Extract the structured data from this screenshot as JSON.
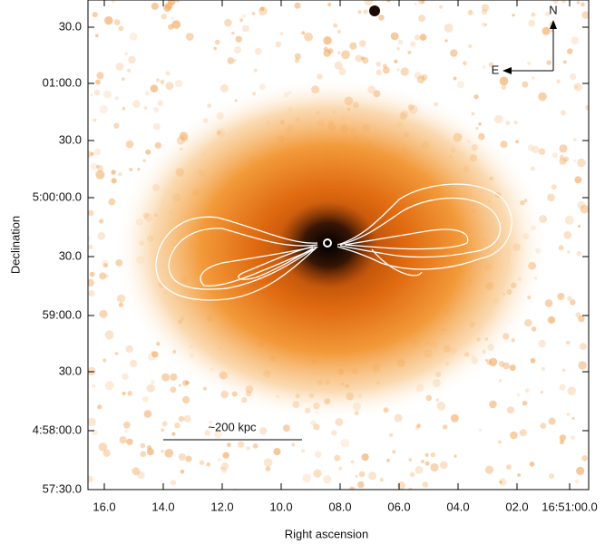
{
  "figure": {
    "x_axis": {
      "label": "Right ascension",
      "ticks": [
        "16.0",
        "14.0",
        "12.0",
        "10.0",
        "08.0",
        "06.0",
        "04.0",
        "02.0",
        "16:51:00.0"
      ]
    },
    "y_axis": {
      "label": "Declination",
      "ticks": [
        "30.0",
        "01:00.0",
        "30.0",
        "5:00:00.0",
        "30.0",
        "59:00.0",
        "30.0",
        "4:58:00.0",
        "57:30.0"
      ]
    },
    "annotations": {
      "north": "N",
      "east": "E",
      "scale_bar": "~200 kpc"
    }
  }
}
